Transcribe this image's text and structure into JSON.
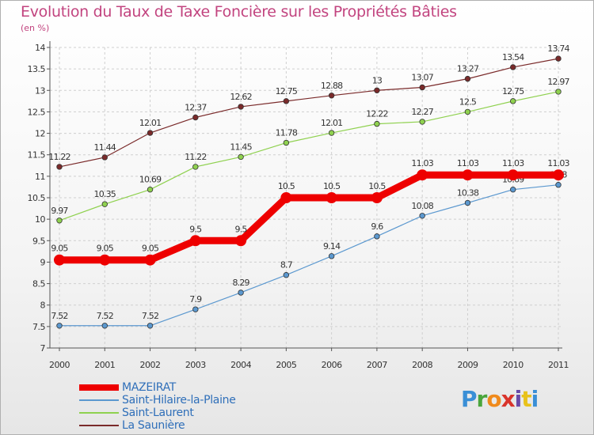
{
  "title": "Evolution du Taux de Taxe Foncière sur les Propriétés Bâties",
  "subtitle": "(en %)",
  "logo": {
    "text": "Proxiti",
    "letters": [
      "P",
      "r",
      "o",
      "x",
      "i",
      "t",
      "i"
    ],
    "colors": [
      "#3a8fd6",
      "#4aa63c",
      "#f08a1c",
      "#d9342b",
      "#6b4aa8",
      "#e8c21b",
      "#3a8fd6"
    ]
  },
  "chart_data": {
    "type": "line",
    "title": "Evolution du Taux de Taxe Foncière sur les Propriétés Bâties",
    "ylabel": "(en %)",
    "xlabel": "",
    "ylim": [
      7,
      14
    ],
    "yticks": [
      "7",
      "7.5",
      "8",
      "8.5",
      "9",
      "9.5",
      "10",
      "10.5",
      "11",
      "11.5",
      "12",
      "12.5",
      "13",
      "13.5",
      "14"
    ],
    "ytick_values": [
      7,
      7.5,
      8,
      8.5,
      9,
      9.5,
      10,
      10.5,
      11,
      11.5,
      12,
      12.5,
      13,
      13.5,
      14
    ],
    "categories": [
      "2000",
      "2001",
      "2002",
      "2003",
      "2004",
      "2005",
      "2006",
      "2007",
      "2008",
      "2009",
      "2010",
      "2011"
    ],
    "grid": true,
    "legend_position": "bottom-left",
    "series": [
      {
        "name": "La Saunière",
        "color": "#7a2a2a",
        "values": [
          11.22,
          11.44,
          12.01,
          12.37,
          12.62,
          12.75,
          12.88,
          13,
          13.07,
          13.27,
          13.54,
          13.74
        ],
        "labels": [
          "11.22",
          "11.44",
          "12.01",
          "12.37",
          "12.62",
          "12.75",
          "12.88",
          "13",
          "13.07",
          "13.27",
          "13.54",
          "13.74"
        ]
      },
      {
        "name": "Saint-Laurent",
        "color": "#8fd14f",
        "values": [
          9.97,
          10.35,
          10.69,
          11.22,
          11.45,
          11.78,
          12.01,
          12.22,
          12.27,
          12.5,
          12.75,
          12.97
        ],
        "labels": [
          "9.97",
          "10.35",
          "10.69",
          "11.22",
          "11.45",
          "11.78",
          "12.01",
          "12.22",
          "12.27",
          "12.5",
          "12.75",
          "12.97"
        ]
      },
      {
        "name": "Saint-Hilaire-la-Plaine",
        "color": "#5b98cf",
        "values": [
          7.52,
          7.52,
          7.52,
          7.9,
          8.29,
          8.7,
          9.14,
          9.6,
          10.08,
          10.38,
          10.69,
          10.8
        ],
        "labels": [
          "7.52",
          "7.52",
          "7.52",
          "7.9",
          "8.29",
          "8.7",
          "9.14",
          "9.6",
          "10.08",
          "10.38",
          "10.69",
          "10.8"
        ]
      },
      {
        "name": "MAZEIRAT",
        "color": "#ee0000",
        "values": [
          9.05,
          9.05,
          9.05,
          9.5,
          9.5,
          10.5,
          10.5,
          10.5,
          11.03,
          11.03,
          11.03,
          11.03
        ],
        "labels": [
          "9.05",
          "9.05",
          "9.05",
          "9.5",
          "9.5",
          "10.5",
          "10.5",
          "10.5",
          "11.03",
          "11.03",
          "11.03",
          "11.03"
        ]
      }
    ],
    "legend_order": [
      "MAZEIRAT",
      "Saint-Hilaire-la-Plaine",
      "Saint-Laurent",
      "La Saunière"
    ]
  }
}
